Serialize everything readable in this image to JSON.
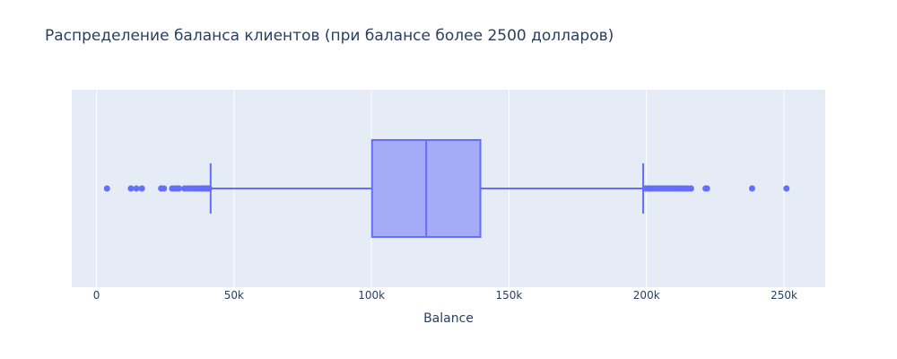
{
  "chart_data": {
    "type": "box",
    "title": "Распределение баланса клиентов (при балансе более 2500 долларов)",
    "xlabel": "Balance",
    "ylabel": "",
    "orientation": "horizontal",
    "xlim": [
      -9000,
      265000
    ],
    "ticks": [
      {
        "value": 0,
        "label": "0"
      },
      {
        "value": 50000,
        "label": "50k"
      },
      {
        "value": 100000,
        "label": "100k"
      },
      {
        "value": 150000,
        "label": "150k"
      },
      {
        "value": 200000,
        "label": "200k"
      },
      {
        "value": 250000,
        "label": "250k"
      }
    ],
    "grid": true,
    "box": {
      "lower_fence": 41500,
      "q1": 100200,
      "median": 119900,
      "q3": 139600,
      "upper_fence": 198800
    },
    "outliers": [
      3800,
      12500,
      14500,
      16500,
      23500,
      24500,
      27500,
      28500,
      29500,
      30000,
      32000,
      33000,
      34000,
      35000,
      35500,
      36500,
      37000,
      38000,
      38500,
      39000,
      39500,
      40000,
      40500,
      41000,
      199500,
      200200,
      200800,
      201500,
      202200,
      203000,
      203800,
      204500,
      205200,
      206000,
      206800,
      207500,
      208300,
      209000,
      209800,
      210500,
      211300,
      212000,
      212800,
      213500,
      214300,
      215200,
      216200,
      221500,
      222000,
      238400,
      250900
    ],
    "colors": {
      "series": "#636efa",
      "box_fill": "#a4acf7",
      "plot_bg": "#e5ecf6",
      "grid": "#ffffff",
      "text": "#2a3f5f"
    }
  }
}
